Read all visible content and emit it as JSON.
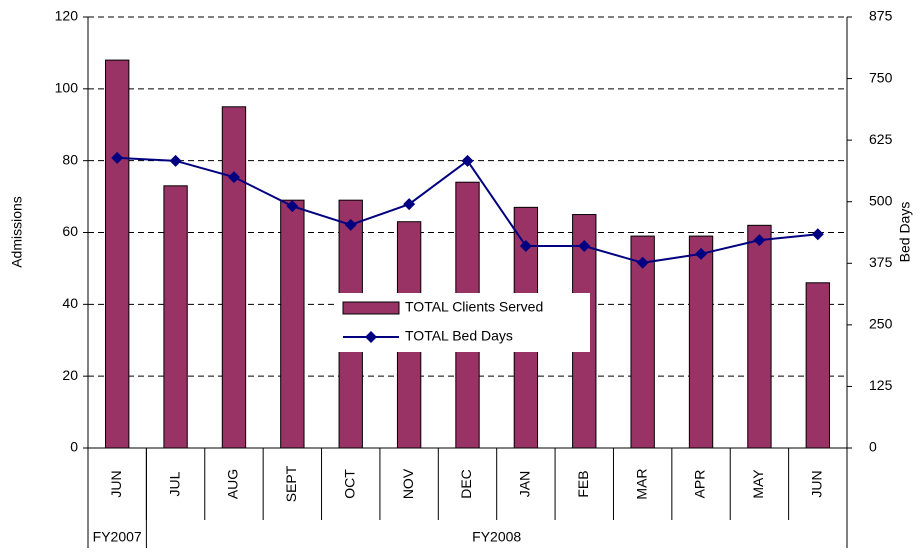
{
  "chart_data": {
    "type": "bar-line",
    "categories": [
      "JUN",
      "JUL",
      "AUG",
      "SEPT",
      "OCT",
      "NOV",
      "DEC",
      "JAN",
      "FEB",
      "MAR",
      "APR",
      "MAY",
      "JUN"
    ],
    "groups": [
      {
        "label": "FY2007",
        "span": 1
      },
      {
        "label": "FY2008",
        "span": 12
      }
    ],
    "series": [
      {
        "name": "TOTAL Clients Served",
        "type": "bar",
        "color": "#993366",
        "values": [
          108,
          73,
          95,
          69,
          69,
          63,
          74,
          67,
          65,
          59,
          59,
          62,
          46
        ]
      },
      {
        "name": "TOTAL Bed Days",
        "type": "line",
        "axis": "y2",
        "color": "#000080",
        "values": [
          589,
          583,
          550,
          491,
          453,
          495,
          583,
          410,
          410,
          376,
          394,
          422,
          434
        ]
      }
    ],
    "ylabel": "Admissions",
    "y2label": "Bed Days",
    "ylim": [
      0,
      120
    ],
    "yticks": [
      0,
      20,
      40,
      60,
      80,
      100,
      120
    ],
    "y2lim": [
      0,
      875
    ],
    "y2ticks": [
      0,
      125,
      250,
      375,
      500,
      625,
      750,
      875
    ],
    "grid": true,
    "legend": "center"
  }
}
